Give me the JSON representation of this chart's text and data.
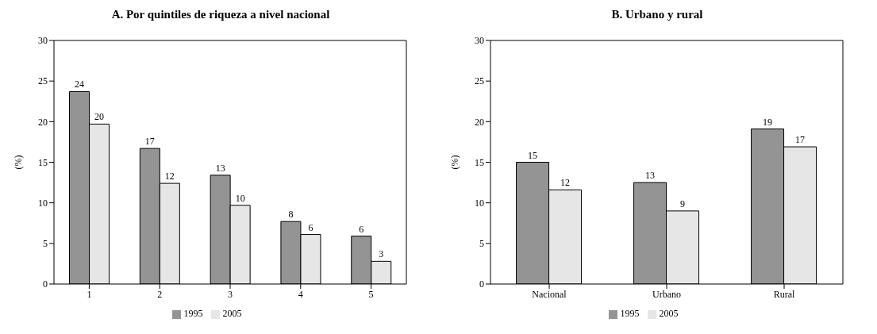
{
  "chart_data": [
    {
      "type": "bar",
      "title": "A. Por quintiles de riqueza a nivel nacional",
      "ylabel": "(%)",
      "categories": [
        "1",
        "2",
        "3",
        "4",
        "5"
      ],
      "ylim": [
        0,
        30
      ],
      "yticks": [
        0,
        5,
        10,
        15,
        20,
        25,
        30
      ],
      "grid": false,
      "legend": "bottom",
      "series": [
        {
          "name": "1995",
          "color": "#949494",
          "values": [
            23.7,
            16.7,
            13.4,
            7.7,
            5.9
          ],
          "value_labels": [
            "24",
            "17",
            "13",
            "8",
            "6"
          ]
        },
        {
          "name": "2005",
          "color": "#e6e6e6",
          "values": [
            19.7,
            12.4,
            9.7,
            6.1,
            2.8
          ],
          "value_labels": [
            "20",
            "12",
            "10",
            "6",
            "3"
          ]
        }
      ]
    },
    {
      "type": "bar",
      "title": "B. Urbano y rural",
      "ylabel": "(%)",
      "categories": [
        "Nacional",
        "Urbano",
        "Rural"
      ],
      "ylim": [
        0,
        30
      ],
      "yticks": [
        0,
        5,
        10,
        15,
        20,
        25,
        30
      ],
      "grid": false,
      "legend": "bottom",
      "series": [
        {
          "name": "1995",
          "color": "#949494",
          "values": [
            15.0,
            12.5,
            19.1
          ],
          "value_labels": [
            "15",
            "13",
            "19"
          ]
        },
        {
          "name": "2005",
          "color": "#e6e6e6",
          "values": [
            11.6,
            9.0,
            16.9
          ],
          "value_labels": [
            "12",
            "9",
            "17"
          ]
        }
      ]
    }
  ]
}
